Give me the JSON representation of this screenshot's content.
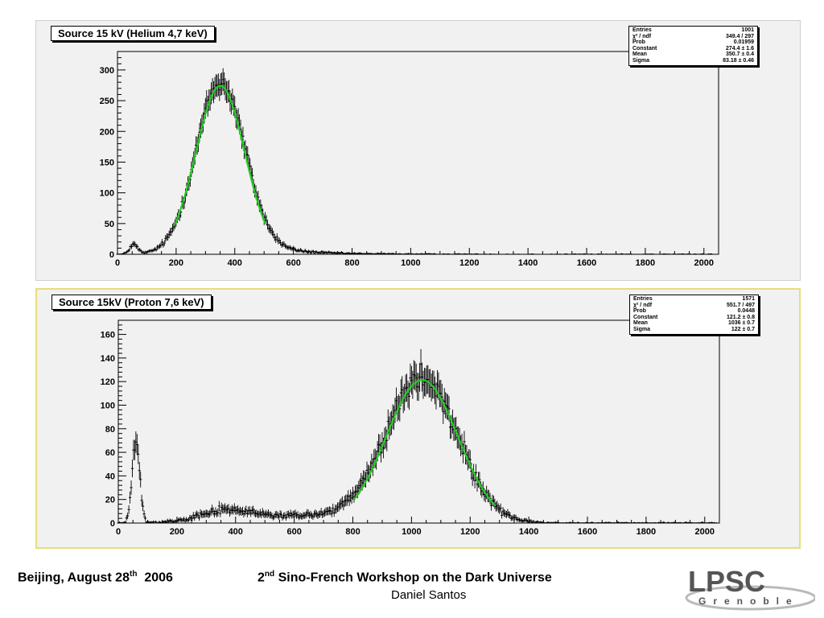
{
  "chart_data": [
    {
      "type": "histogram",
      "title": "Source 15 kV (Helium 4,7 keV)",
      "xlim": [
        0,
        2050
      ],
      "ylim": [
        0,
        330
      ],
      "xticks": [
        0,
        200,
        400,
        600,
        800,
        1000,
        1200,
        1400,
        1600,
        1800,
        2000
      ],
      "yticks": [
        0,
        50,
        100,
        150,
        200,
        250,
        300
      ],
      "stats": [
        {
          "label": "Entries",
          "value": "1001"
        },
        {
          "label": "χ² / ndf",
          "value": "349.4 / 297"
        },
        {
          "label": "Prob",
          "value": "0.01959"
        },
        {
          "label": "Constant",
          "value": "274.4 ± 1.6"
        },
        {
          "label": "Mean",
          "value": "350.7 ± 0.4"
        },
        {
          "label": "Sigma",
          "value": "83.18 ± 0.46"
        }
      ],
      "components": [
        {
          "mean": 350.7,
          "sigma": 83.18,
          "amp": 274.4
        },
        {
          "mean": 55,
          "sigma": 14,
          "amp": 15
        },
        {
          "mean": 480,
          "sigma": 140,
          "amp": 6
        },
        {
          "mean": 700,
          "sigma": 250,
          "amp": 1
        }
      ],
      "fit": {
        "constant": 274.4,
        "mean": 350.7,
        "sigma": 83.18,
        "range": [
          195,
          505
        ],
        "color": "#22cc22"
      }
    },
    {
      "type": "histogram",
      "title": "Source 15kV (Proton 7,6 keV)",
      "xlim": [
        0,
        2050
      ],
      "ylim": [
        0,
        172
      ],
      "xticks": [
        0,
        200,
        400,
        600,
        800,
        1000,
        1200,
        1400,
        1600,
        1800,
        2000
      ],
      "yticks": [
        0,
        20,
        40,
        60,
        80,
        100,
        120,
        140,
        160
      ],
      "stats": [
        {
          "label": "Entries",
          "value": "1571"
        },
        {
          "label": "χ² / ndf",
          "value": "551.7 / 497"
        },
        {
          "label": "Prob",
          "value": "0.0448"
        },
        {
          "label": "Constant",
          "value": "121.2 ± 0.8"
        },
        {
          "label": "Mean",
          "value": "1036 ± 0.7"
        },
        {
          "label": "Sigma",
          "value": "122 ± 0.7"
        }
      ],
      "components": [
        {
          "mean": 1036,
          "sigma": 122,
          "amp": 121.2
        },
        {
          "mean": 60,
          "sigma": 13,
          "amp": 68
        },
        {
          "mean": 360,
          "sigma": 90,
          "amp": 9
        },
        {
          "mean": 650,
          "sigma": 200,
          "amp": 6
        }
      ],
      "fit": {
        "constant": 121.2,
        "mean": 1036,
        "sigma": 122,
        "range": [
          805,
          1285
        ],
        "color": "#22cc22"
      }
    }
  ],
  "footer": {
    "location_date": "Beijing,  August 28",
    "date_sup": "th",
    "year": "  2006",
    "workshop_num": "2",
    "workshop_sup": "nd",
    "workshop_title": " Sino-French Workshop on the Dark Universe",
    "author": "Daniel Santos"
  },
  "logo": {
    "text": "LPSC",
    "subtext": "Grenoble"
  }
}
